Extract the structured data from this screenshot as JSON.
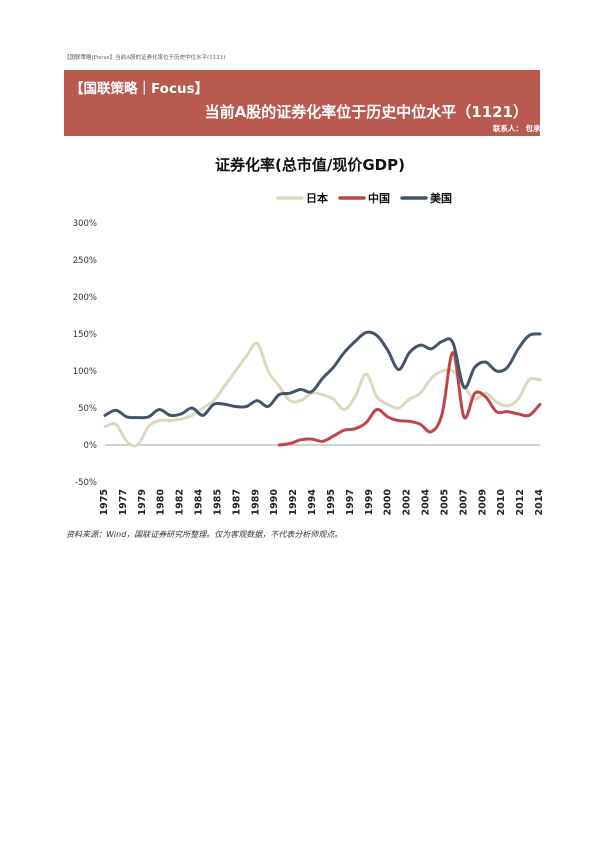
{
  "header": {
    "running_title": "【国联策略|Focus】当前A股的证券化率位于历史中位水平(1121)",
    "tag": "【国联策略｜Focus】",
    "title": "当前A股的证券化率位于历史中位水平（1121）",
    "contact": "联系人： 包承超"
  },
  "colors": {
    "banner": "#b85a4e",
    "japan": "#dcd8c0",
    "china": "#c0454a",
    "usa": "#44546a"
  },
  "chart_data": {
    "type": "line",
    "title": "证券化率(总市值/现价GDP)",
    "xlabel": "",
    "ylabel": "",
    "legend_position": "top",
    "grid": false,
    "xlim": [
      1975,
      2015
    ],
    "ylim": [
      -50,
      300
    ],
    "y_ticks": [
      "-50%",
      "0%",
      "50%",
      "100%",
      "150%",
      "200%",
      "250%",
      "300%"
    ],
    "y_tick_values": [
      -50,
      0,
      50,
      100,
      150,
      200,
      250,
      300
    ],
    "x_ticks": [
      "1975",
      "1977",
      "1979",
      "1980",
      "1982",
      "1984",
      "1985",
      "1987",
      "1989",
      "1990",
      "1992",
      "1994",
      "1995",
      "1997",
      "1999",
      "2000",
      "2002",
      "2004",
      "2005",
      "2007",
      "2009",
      "2010",
      "2012",
      "2014"
    ],
    "series": [
      {
        "name": "日本",
        "color": "#dcd8c0",
        "x": [
          1975,
          1976,
          1977,
          1978,
          1979,
          1980,
          1981,
          1982,
          1983,
          1984,
          1985,
          1986,
          1987,
          1988,
          1989,
          1990,
          1991,
          1992,
          1993,
          1994,
          1995,
          1996,
          1997,
          1998,
          1999,
          2000,
          2001,
          2002,
          2003,
          2004,
          2005,
          2006,
          2007,
          2008,
          2009,
          2010,
          2011,
          2012,
          2013,
          2014,
          2015
        ],
        "values": [
          25,
          28,
          5,
          0,
          25,
          33,
          33,
          35,
          40,
          50,
          60,
          80,
          100,
          120,
          137,
          100,
          80,
          60,
          60,
          70,
          68,
          62,
          48,
          65,
          96,
          65,
          55,
          50,
          62,
          70,
          90,
          100,
          100,
          80,
          62,
          70,
          58,
          53,
          62,
          88,
          88
        ]
      },
      {
        "name": "中国",
        "color": "#c0454a",
        "x": [
          1991,
          1992,
          1993,
          1994,
          1995,
          1996,
          1997,
          1998,
          1999,
          2000,
          2001,
          2002,
          2003,
          2004,
          2005,
          2006,
          2007,
          2008,
          2009,
          2010,
          2011,
          2012,
          2013,
          2014,
          2015
        ],
        "values": [
          0,
          2,
          7,
          8,
          5,
          12,
          20,
          22,
          30,
          48,
          38,
          33,
          32,
          28,
          18,
          42,
          125,
          38,
          70,
          65,
          45,
          45,
          42,
          40,
          55
        ]
      },
      {
        "name": "美国",
        "color": "#44546a",
        "x": [
          1975,
          1976,
          1977,
          1978,
          1979,
          1980,
          1981,
          1982,
          1983,
          1984,
          1985,
          1986,
          1987,
          1988,
          1989,
          1990,
          1991,
          1992,
          1993,
          1994,
          1995,
          1996,
          1997,
          1998,
          1999,
          2000,
          2001,
          2002,
          2003,
          2004,
          2005,
          2006,
          2007,
          2008,
          2009,
          2010,
          2011,
          2012,
          2013,
          2014,
          2015
        ],
        "values": [
          40,
          47,
          38,
          37,
          38,
          48,
          40,
          42,
          50,
          40,
          55,
          55,
          52,
          52,
          60,
          52,
          68,
          70,
          75,
          72,
          90,
          105,
          125,
          140,
          152,
          148,
          128,
          102,
          125,
          135,
          130,
          140,
          138,
          78,
          105,
          112,
          100,
          105,
          130,
          148,
          150
        ]
      }
    ]
  },
  "footer": {
    "source": "资料来源：Wind，国联证券研究所整理。仅为客观数据，不代表分析师观点。"
  }
}
